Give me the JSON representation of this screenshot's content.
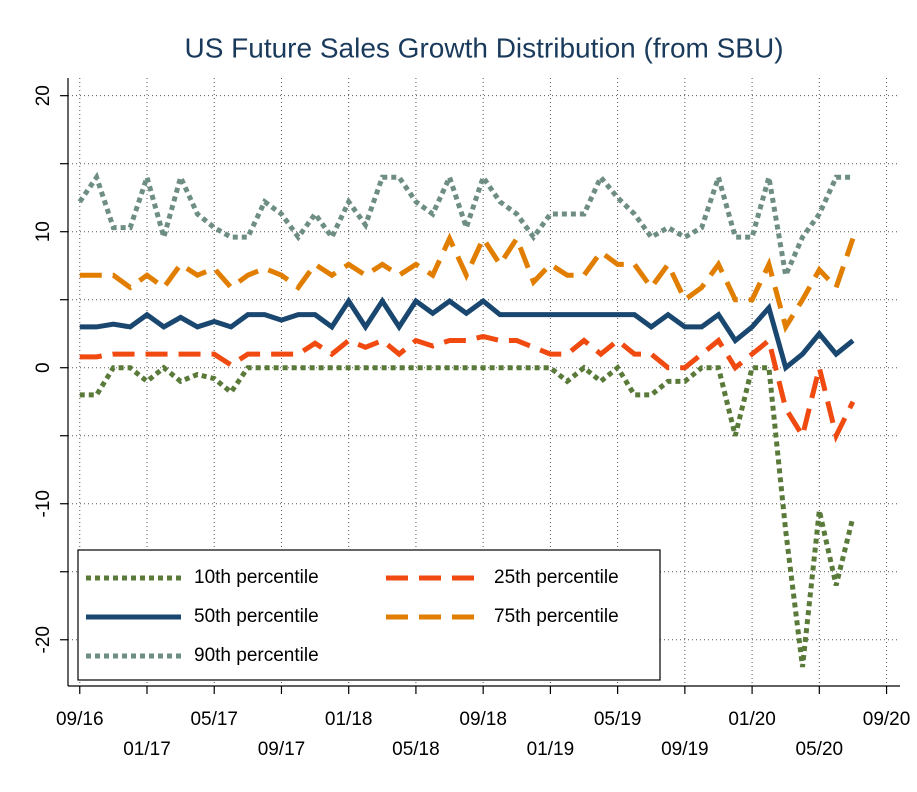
{
  "chart_data": {
    "type": "line",
    "title": "US Future Sales Growth Distribution (from SBU)",
    "x": [
      0,
      1,
      2,
      3,
      4,
      5,
      6,
      7,
      8,
      9,
      10,
      11,
      12,
      13,
      14,
      15,
      16,
      17,
      18,
      19,
      20,
      21,
      22,
      23,
      24,
      25,
      26,
      27,
      28,
      29,
      30,
      31,
      32,
      33,
      34,
      35,
      36,
      37,
      38,
      39,
      40,
      41,
      42,
      43,
      44,
      45,
      46
    ],
    "xlim": [
      -0.7,
      48.8
    ],
    "xticks": [
      {
        "value": 0,
        "label": "09/16"
      },
      {
        "value": 4,
        "label": "01/17"
      },
      {
        "value": 8,
        "label": "05/17"
      },
      {
        "value": 12,
        "label": "09/17"
      },
      {
        "value": 16,
        "label": "01/18"
      },
      {
        "value": 20,
        "label": "05/18"
      },
      {
        "value": 24,
        "label": "09/18"
      },
      {
        "value": 28,
        "label": "01/19"
      },
      {
        "value": 32,
        "label": "05/19"
      },
      {
        "value": 36,
        "label": "09/19"
      },
      {
        "value": 40,
        "label": "01/20"
      },
      {
        "value": 44,
        "label": "05/20"
      },
      {
        "value": 48,
        "label": "09/20"
      }
    ],
    "ylim": [
      -23.4,
      21.3
    ],
    "yticks": [
      -20,
      -10,
      0,
      10,
      20
    ],
    "yminor_ticks": [
      -15,
      -5,
      5,
      15
    ],
    "grid": true,
    "legend": "bottom-left",
    "series": [
      {
        "name": "10th percentile",
        "color": "#5a7a3a",
        "style": "dotted",
        "values": [
          -2,
          -2,
          0,
          0,
          -1,
          0,
          -1,
          -0.5,
          -0.8,
          -1.8,
          0,
          0,
          0,
          0,
          0,
          0,
          0,
          0,
          0,
          0,
          0,
          0,
          0,
          0,
          0,
          0,
          0,
          0,
          0,
          -1,
          0,
          -1,
          0,
          -2,
          -2,
          -1,
          -1,
          0,
          0,
          -5,
          0,
          0,
          -12,
          -22,
          -10.5,
          -16,
          -11
        ]
      },
      {
        "name": "25th percentile",
        "color": "#f04a10",
        "style": "dashed",
        "values": [
          0.8,
          0.8,
          1,
          1,
          1,
          1,
          1,
          1,
          1,
          0.2,
          1,
          1,
          1,
          1,
          1.8,
          1,
          2,
          1.5,
          2,
          1,
          2,
          1.6,
          2,
          2,
          2.3,
          2,
          2,
          1.5,
          1,
          1,
          2,
          1,
          2,
          1,
          1,
          0,
          0,
          1,
          2,
          0,
          1,
          2,
          -3,
          -5,
          0,
          -5,
          -2.5
        ]
      },
      {
        "name": "50th percentile",
        "color": "#1a476f",
        "style": "solid",
        "values": [
          3,
          3,
          3.2,
          3,
          3.9,
          3,
          3.7,
          3,
          3.4,
          3,
          3.9,
          3.9,
          3.5,
          3.9,
          3.9,
          3,
          4.9,
          3,
          4.9,
          3,
          4.9,
          4,
          4.9,
          4,
          4.9,
          3.9,
          3.9,
          3.9,
          3.9,
          3.9,
          3.9,
          3.9,
          3.9,
          3.9,
          3,
          3.9,
          3,
          3,
          3.9,
          2,
          3,
          4.4,
          0,
          1,
          2.5,
          1,
          2
        ]
      },
      {
        "name": "75th percentile",
        "color": "#e17e00",
        "style": "dashed",
        "values": [
          6.8,
          6.8,
          6.8,
          5.9,
          6.8,
          5.9,
          7.6,
          6.8,
          7.3,
          5.9,
          6.8,
          7.3,
          6.8,
          5.9,
          7.6,
          6.8,
          7.6,
          6.8,
          7.6,
          6.8,
          7.6,
          6.8,
          9.5,
          6.8,
          9.5,
          7.6,
          9.5,
          6.3,
          7.6,
          6.8,
          6.8,
          8.5,
          7.6,
          7.6,
          5.9,
          7.6,
          5,
          5.9,
          7.6,
          5,
          5,
          7.6,
          3,
          5,
          7.2,
          5.9,
          9.5
        ]
      },
      {
        "name": "90th percentile",
        "color": "#6e8e84",
        "style": "dotted",
        "values": [
          12.2,
          14,
          10.3,
          10.3,
          14,
          9.6,
          14,
          11.3,
          10.3,
          9.6,
          9.6,
          12.2,
          11.3,
          9.6,
          11.3,
          9.6,
          12.2,
          10.5,
          14,
          14,
          12.2,
          11.3,
          14,
          10.3,
          14,
          12.2,
          11.3,
          9.6,
          11.3,
          11.3,
          11.3,
          14,
          12.5,
          11.3,
          9.6,
          10.3,
          9.6,
          10.3,
          14,
          9.6,
          9.6,
          14,
          6.8,
          9.6,
          11.3,
          14,
          14
        ]
      }
    ]
  }
}
